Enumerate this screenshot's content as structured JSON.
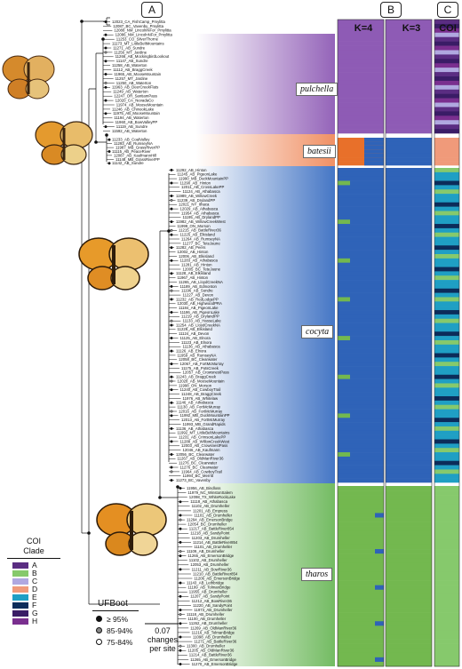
{
  "panels": {
    "a": "A",
    "b": "B",
    "c": "C"
  },
  "k_labels": {
    "k4": "K=4",
    "k3": "K=3",
    "coi": "COI"
  },
  "clades": [
    {
      "name": "pulchella",
      "color": "#8e5bb5"
    },
    {
      "name": "batesii",
      "color": "#ef8a5c"
    },
    {
      "name": "cocyta",
      "color": "#3b6fc2"
    },
    {
      "name": "tharos",
      "color": "#6cb85a"
    }
  ],
  "structure_colors": {
    "purple": "#8e5bb5",
    "orange": "#e8702a",
    "blue": "#2f63b8",
    "green": "#73b84f"
  },
  "coi_legend": {
    "title": "COI\nClade",
    "items": [
      {
        "label": "A",
        "color": "#5a2d82"
      },
      {
        "label": "B",
        "color": "#86c96c"
      },
      {
        "label": "C",
        "color": "#b0a8e0"
      },
      {
        "label": "D",
        "color": "#f09a7a"
      },
      {
        "label": "E",
        "color": "#1f9fc4"
      },
      {
        "label": "F",
        "color": "#0c2c5a"
      },
      {
        "label": "G",
        "color": "#3a1c66"
      },
      {
        "label": "H",
        "color": "#7a2f8f"
      }
    ]
  },
  "ufboot": {
    "title": "UFBoot",
    "items": [
      {
        "label": "≥ 95%",
        "fill": "#111"
      },
      {
        "label": "85-94%",
        "fill": "#888"
      },
      {
        "label": "75-84%",
        "fill": "#fff"
      }
    ]
  },
  "scale": {
    "value": "0.07",
    "line1": "changes",
    "line2": "per site"
  },
  "tips": {
    "pulchella": [
      "12023_CA_FishCamp_Pmylitta",
      "12087_BC_Vavenby_Pmylitta",
      "12088_NM_LincolnNFor_Pmylitta",
      "12086_NM_LincolnNFor_Pmylitta",
      "11253_CO_SilverThorne",
      "11173_MT_LittleBeltMountains",
      "11271_AB_Sundre",
      "11256_MT_Jardine",
      "11266_AB_MockingbirdLookout",
      "11147_AB_Sundre",
      "11258_AB_Waterton",
      "11112_AB_BraggCreek",
      "11965_AB_MooseMountain",
      "11257_MT_Jardine",
      "11250_AB_Waterton",
      "11963_AB_DeerCreekFlats",
      "11249_AB_Waterton",
      "12247_OR_SantiamPass",
      "12020_CA_NevadaCo",
      "11974_AB_MooseMountain",
      "11246_AB_ChinookLake",
      "11975_AB_MooseMountain",
      "11194_AB_Waterton",
      "11960_AB_BowValleyPP",
      "11119_AB_Sundre",
      "11592_AB_Waterton"
    ],
    "batesii": [
      "11233_AB_CoalValley",
      "11293_AB_RumseyNA",
      "11987_MB_GrassRiverPP",
      "11115_AB_PeaceRiver",
      "12087_AB_KaufmannHill",
      "11148_MB_GrassRiverPP",
      "11142_AB_Sundre"
    ],
    "cocyta": [
      "11292_AB_Hinton",
      "11245_AB_PigeonLake",
      "11990_MB_DuckMountainPP",
      "11290_AB_Hinton",
      "12011_AB_CrossLakePP",
      "11124_AB_Athabasca",
      "11989_AB_WillowCreek",
      "11239_AB_DrylandPP",
      "12021_NY_Ithaca",
      "12029_AB_Athabasca",
      "11954_AB_Athabasca",
      "11195_AB_DrylandPP",
      "11982_AB_WillowCreekWest",
      "11999_ON_Morson",
      "11215_AB_BattleRiver36",
      "11225_AB_Elkisland",
      "11264_AB_RumseyNA",
      "11277_BC_TeteJaune",
      "11282_AB_Peers",
      "12002_AB_Hinton",
      "12006_AB_Elkisland",
      "11283_AB_Athabasca",
      "11281_AB_Hinton",
      "12005_BC_TeteJaune",
      "11128_AB_Elkisland",
      "11967_AB_Hinton",
      "11265_AB_LloydCreekNA",
      "11189_AB_Edmonton",
      "11196_AB_Sundre",
      "11227_AB_Devon",
      "11232_AB_RedLodgePP",
      "12030_AB_HighwoodPRA",
      "11184_AB_PigeonLake",
      "11186_AB_PigeonLake",
      "11219_AB_DrylandPP",
      "11133_AB_HasseLake",
      "11254_AB_LloydCreekNA",
      "11229_AB_Elkisland",
      "11124_AB_Devon",
      "11125_AB_Elnora",
      "11123_AB_Elnora",
      "11136_AB_Athabasca",
      "11126_AB_Elnora",
      "11959_AB_RumseyNA",
      "12058_BC_Clearwater",
      "12067_AB_FortMcMurray",
      "11175_AB_PotsCreek",
      "12057_AB_CrowsnestPass",
      "11243_AB_BraggCreek",
      "12028_AB_MooseMountain",
      "11998_ON_Morson",
      "11240_AB_CowboyTrail",
      "11248_AB_BraggCreek",
      "11976_AB_Whitelaw",
      "11146_AB_Athabasca",
      "11130_AB_FortMcMurray",
      "12016_AB_FortMcMurray",
      "11992_MB_DuckMountainPP",
      "12013_AB_FortMcMurray",
      "11993_MB_GrandRapids",
      "11136_AB_Athabasca",
      "11992_MT_LittleBeltMountains",
      "11231_AB_CrimsonLakePP",
      "11288_AB_WillowCreekWest",
      "12003_AB_CrowsnestPass",
      "12046_AB_Kaufmann",
      "12056_BC_Clearwater",
      "11267_AB_OldManRiver36",
      "11276_BC_Clearwater",
      "11276_BC_Clearwater",
      "11964_AB_CowboyTrail",
      "11994_BC_Merritt",
      "11273_BC_Vavenby"
    ],
    "tharos": [
      "11956_AB_Bindloss",
      "11979_NC_WinstonSalem",
      "12098_TX_WhiteRockLake",
      "11118_AB_Athabasca",
      "11102_AB_Drumheller",
      "11201_AB_Empress",
      "11101_AB_Drumheller",
      "11294_AB_EmersonBridge",
      "12054_BC_Drumheller",
      "11217_AB_BattleRiver854",
      "11218_AB_SandyPoint",
      "11203_AB_Drumheller",
      "11214_AB_BattleRiver854",
      "11101_AB_Drumheller",
      "11109_AB_Drumheller",
      "11265_AB_EmersonBridge",
      "11102_AB_Drumheller",
      "12053_AB_Drumheller",
      "11211_AB_BowRiver36",
      "11210_AB_BattleRiver854",
      "11206_AB_EmersonBridge",
      "11143_AB_Lethbridge",
      "11199_AB_TolmanBridge",
      "11955_AB_Drumheller",
      "11207_AB_SandyPoint",
      "11212_AB_BowRiver36",
      "11220_AB_SandyPoint",
      "11973_AB_Drumheller",
      "11118_AB_Drumheller",
      "11100_AB_Drumheller",
      "11262_AB_Drumheller",
      "11269_AB_OldManRiver36",
      "11216_AB_TolmanBridge",
      "11098_AB_Drumheller",
      "11271_AB_BattleRiver36",
      "11300_AB_Drumheller",
      "11205_AB_OldManRiver36",
      "11214_AB_BattleRiver36",
      "11265_AB_EmersonBridge",
      "11270_AB_EmersonBridge"
    ]
  }
}
